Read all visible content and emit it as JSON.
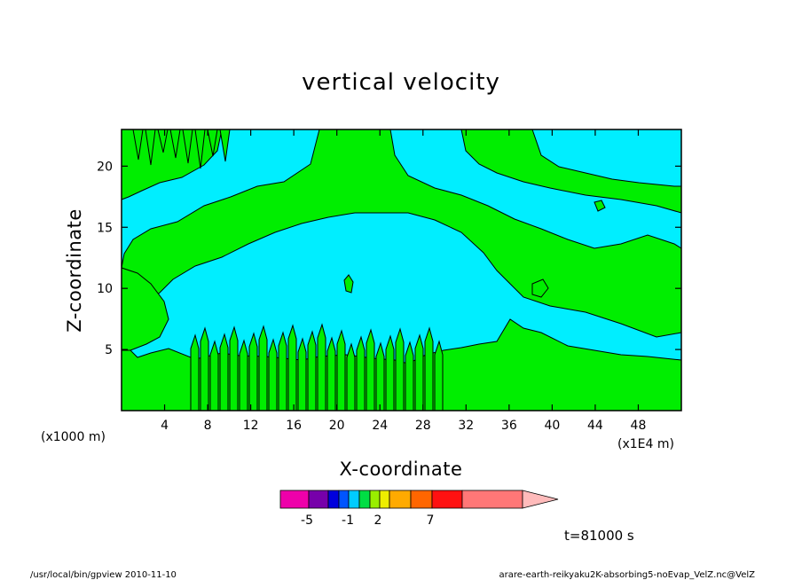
{
  "chart_data": {
    "type": "contour",
    "title": "vertical velocity",
    "xlabel": "X-coordinate",
    "ylabel": "Z-coordinate",
    "x_unit_left": "(x1000 m)",
    "x_unit_right": "(x1E4 m)",
    "xlim": [
      0,
      52
    ],
    "ylim": [
      0,
      23
    ],
    "xticks": [
      4,
      8,
      12,
      16,
      20,
      24,
      28,
      32,
      36,
      40,
      44,
      48
    ],
    "yticks": [
      5,
      10,
      15,
      20
    ],
    "fill_colors": {
      "negative": "#00eeff",
      "positive": "#00ee00",
      "line": "#000000"
    },
    "colorbar": {
      "colors": [
        "#ee00aa",
        "#7700aa",
        "#0000dd",
        "#0055ff",
        "#00ccff",
        "#00dd44",
        "#99ee00",
        "#eeee00",
        "#ffaa00",
        "#ff6600",
        "#ff1111",
        "#ff7777",
        "#ffbbbb"
      ],
      "labels": [
        "-5",
        "-1",
        "2",
        "7"
      ]
    },
    "time_label": "t=81000 s"
  },
  "footer": {
    "left": "/usr/local/bin/gpview  2010-11-10",
    "right": "arare-earth-reikyaku2K-absorbing5-noEvap_VelZ.nc@VelZ"
  }
}
